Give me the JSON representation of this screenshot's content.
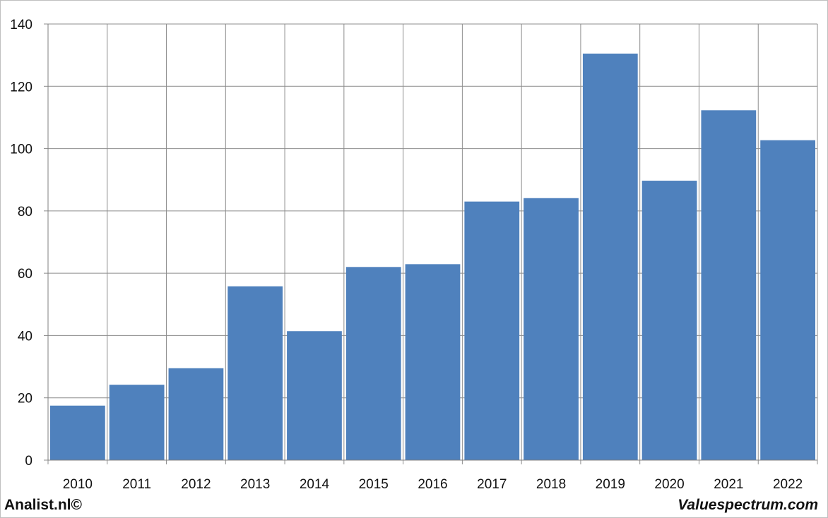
{
  "chart_data": {
    "type": "bar",
    "categories": [
      "2010",
      "2011",
      "2012",
      "2013",
      "2014",
      "2015",
      "2016",
      "2017",
      "2018",
      "2019",
      "2020",
      "2021",
      "2022"
    ],
    "values": [
      17.5,
      24.2,
      29.5,
      55.8,
      41.4,
      62.0,
      62.9,
      83.0,
      84.1,
      130.5,
      89.7,
      112.3,
      102.7
    ],
    "ylim": [
      0,
      140
    ],
    "yticks": [
      0,
      20,
      40,
      60,
      80,
      100,
      120,
      140
    ],
    "grid": true,
    "bar_color": "#4f81bd",
    "title": "",
    "xlabel": "",
    "ylabel": ""
  },
  "footer": {
    "left": "Analist.nl©",
    "right": "Valuespectrum.com"
  }
}
